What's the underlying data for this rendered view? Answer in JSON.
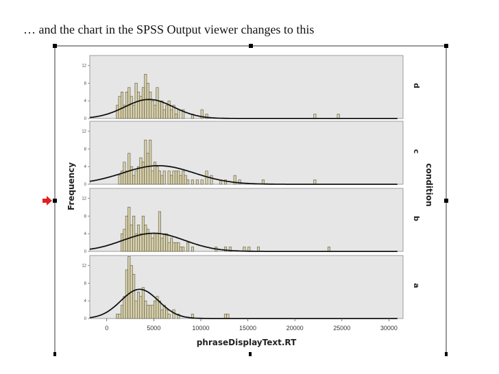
{
  "caption": "… and the chart in the SPSS Output viewer changes to this",
  "colors": {
    "panel_bg": "#e6e6e6",
    "bar_fill": "#d8d0aa",
    "bar_stroke": "#555544",
    "curve": "#111111",
    "marker": "#e02020"
  },
  "chart_data": {
    "type": "bar",
    "title": "",
    "xlabel": "phraseDisplayText.RT",
    "ylabel": "Frequency",
    "panel_axis_label": "condition",
    "xlim": [
      -1800,
      31500
    ],
    "ylim": [
      0,
      13
    ],
    "x_ticks": [
      "0",
      "5000",
      "10000",
      "15000",
      "20000",
      "25000",
      "30000"
    ],
    "y_ticks": [
      "0",
      "4",
      "8",
      "12"
    ],
    "grid": false,
    "bin_width": 250,
    "panels": [
      {
        "condition": "d",
        "bins": [
          [
            1000,
            3
          ],
          [
            1250,
            5
          ],
          [
            1500,
            6
          ],
          [
            1750,
            3
          ],
          [
            2000,
            6
          ],
          [
            2250,
            7
          ],
          [
            2500,
            5
          ],
          [
            2750,
            3
          ],
          [
            3000,
            8
          ],
          [
            3250,
            6
          ],
          [
            3500,
            5
          ],
          [
            3750,
            7
          ],
          [
            4000,
            10
          ],
          [
            4250,
            8
          ],
          [
            4500,
            6
          ],
          [
            4750,
            4
          ],
          [
            5000,
            3
          ],
          [
            5250,
            7
          ],
          [
            5500,
            4
          ],
          [
            5750,
            4
          ],
          [
            6000,
            2
          ],
          [
            6250,
            3
          ],
          [
            6500,
            4
          ],
          [
            6750,
            2
          ],
          [
            7000,
            3
          ],
          [
            7250,
            1
          ],
          [
            7500,
            2
          ],
          [
            8000,
            2
          ],
          [
            9000,
            1
          ],
          [
            10000,
            2
          ],
          [
            10500,
            1
          ],
          [
            22000,
            1
          ],
          [
            24500,
            1
          ]
        ],
        "curve": {
          "mean": 4500,
          "sd": 2600,
          "peak": 4.3
        }
      },
      {
        "condition": "c",
        "bins": [
          [
            1250,
            2
          ],
          [
            1500,
            3
          ],
          [
            1750,
            5
          ],
          [
            2000,
            3
          ],
          [
            2250,
            7
          ],
          [
            2500,
            4
          ],
          [
            2750,
            2
          ],
          [
            3000,
            3
          ],
          [
            3250,
            4
          ],
          [
            3500,
            6
          ],
          [
            3750,
            5
          ],
          [
            4000,
            10
          ],
          [
            4250,
            7
          ],
          [
            4500,
            10
          ],
          [
            4750,
            3
          ],
          [
            5000,
            5
          ],
          [
            5250,
            4
          ],
          [
            5500,
            3
          ],
          [
            5750,
            2
          ],
          [
            6000,
            3
          ],
          [
            6500,
            3
          ],
          [
            6750,
            2
          ],
          [
            7000,
            3
          ],
          [
            7250,
            3
          ],
          [
            7500,
            3
          ],
          [
            7750,
            2
          ],
          [
            8000,
            3
          ],
          [
            8250,
            2
          ],
          [
            8500,
            1
          ],
          [
            9000,
            1
          ],
          [
            9500,
            1
          ],
          [
            10000,
            1
          ],
          [
            10500,
            3
          ],
          [
            11000,
            2
          ],
          [
            12000,
            1
          ],
          [
            12500,
            1
          ],
          [
            13500,
            2
          ],
          [
            14000,
            1
          ],
          [
            16500,
            1
          ],
          [
            22000,
            1
          ]
        ],
        "curve": {
          "mean": 5500,
          "sd": 3800,
          "peak": 4.2
        }
      },
      {
        "condition": "b",
        "bins": [
          [
            1500,
            4
          ],
          [
            1750,
            5
          ],
          [
            2000,
            8
          ],
          [
            2250,
            10
          ],
          [
            2500,
            6
          ],
          [
            2750,
            8
          ],
          [
            3000,
            4
          ],
          [
            3250,
            6
          ],
          [
            3500,
            4
          ],
          [
            3750,
            8
          ],
          [
            4000,
            6
          ],
          [
            4250,
            5
          ],
          [
            4500,
            4
          ],
          [
            4750,
            3
          ],
          [
            5000,
            4
          ],
          [
            5250,
            4
          ],
          [
            5500,
            9
          ],
          [
            5750,
            3
          ],
          [
            6000,
            4
          ],
          [
            6250,
            4
          ],
          [
            6500,
            2
          ],
          [
            6750,
            3
          ],
          [
            7000,
            2
          ],
          [
            7250,
            2
          ],
          [
            7500,
            2
          ],
          [
            7750,
            1
          ],
          [
            8000,
            1
          ],
          [
            8500,
            2
          ],
          [
            9000,
            1
          ],
          [
            11500,
            1
          ],
          [
            12500,
            1
          ],
          [
            13000,
            1
          ],
          [
            14500,
            1
          ],
          [
            15000,
            1
          ],
          [
            16000,
            1
          ],
          [
            23500,
            1
          ]
        ],
        "curve": {
          "mean": 5000,
          "sd": 3300,
          "peak": 4.1
        }
      },
      {
        "condition": "a",
        "bins": [
          [
            1000,
            1
          ],
          [
            1250,
            1
          ],
          [
            1500,
            3
          ],
          [
            1750,
            5
          ],
          [
            2000,
            11
          ],
          [
            2250,
            14
          ],
          [
            2500,
            12
          ],
          [
            2750,
            10
          ],
          [
            3000,
            4
          ],
          [
            3250,
            6
          ],
          [
            3500,
            5
          ],
          [
            3750,
            7
          ],
          [
            4000,
            4
          ],
          [
            4250,
            3
          ],
          [
            4500,
            3
          ],
          [
            4750,
            3
          ],
          [
            5000,
            4
          ],
          [
            5250,
            5
          ],
          [
            5500,
            4
          ],
          [
            5750,
            2
          ],
          [
            6000,
            3
          ],
          [
            6250,
            2
          ],
          [
            6500,
            1
          ],
          [
            7000,
            2
          ],
          [
            7500,
            1
          ],
          [
            9000,
            1
          ],
          [
            12500,
            1
          ],
          [
            12750,
            1
          ]
        ],
        "curve": {
          "mean": 3500,
          "sd": 2000,
          "peak": 6.6
        }
      }
    ]
  }
}
